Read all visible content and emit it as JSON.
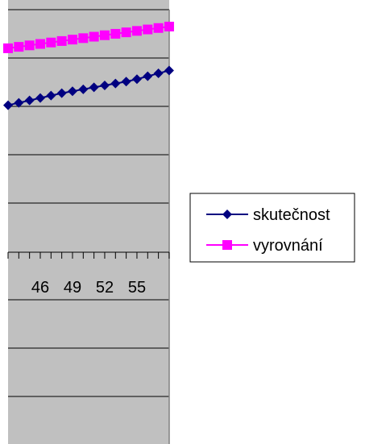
{
  "chart_data": {
    "type": "line",
    "x": [
      43,
      44,
      45,
      46,
      47,
      48,
      49,
      50,
      51,
      52,
      53,
      54,
      55,
      56,
      57,
      58
    ],
    "x_tick_labels": [
      "46",
      "49",
      "52",
      "55"
    ],
    "x_tick_label_values": [
      46,
      49,
      52,
      55
    ],
    "ylim": [
      0,
      9
    ],
    "grid": true,
    "plot_background": "#c0c0c0",
    "legend_position": "right",
    "series": [
      {
        "name": "skutečnost",
        "color": "#000080",
        "marker": "diamond",
        "values": [
          7.02,
          7.07,
          7.12,
          7.17,
          7.22,
          7.27,
          7.31,
          7.35,
          7.39,
          7.43,
          7.47,
          7.51,
          7.56,
          7.62,
          7.68,
          7.74
        ]
      },
      {
        "name": "vyrovnání",
        "color": "#ff00ff",
        "marker": "square",
        "values": [
          8.2,
          8.23,
          8.26,
          8.29,
          8.32,
          8.35,
          8.38,
          8.41,
          8.44,
          8.47,
          8.5,
          8.53,
          8.56,
          8.59,
          8.62,
          8.65
        ]
      }
    ]
  }
}
